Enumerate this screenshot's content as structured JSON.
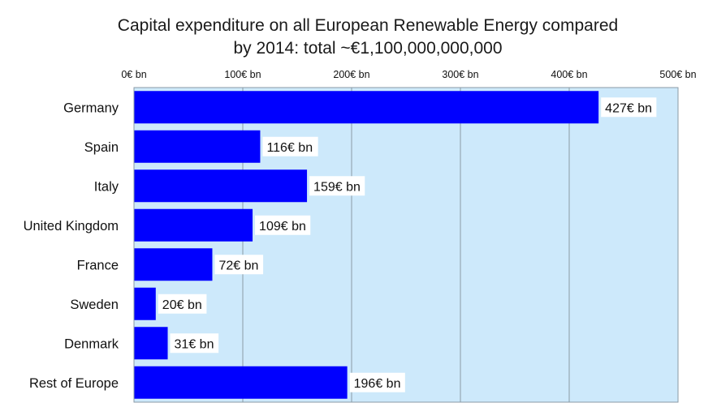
{
  "chart_data": {
    "type": "bar",
    "orientation": "horizontal",
    "title": "Capital expenditure on all European Renewable Energy compared",
    "subtitle": "by 2014:  total ~€1,100,000,000,000",
    "xlabel": "",
    "ylabel": "",
    "categories": [
      "Germany",
      "Spain",
      "Italy",
      "United Kingdom",
      "France",
      "Sweden",
      "Denmark",
      "Rest of Europe"
    ],
    "values": [
      427,
      116,
      159,
      109,
      72,
      20,
      31,
      196
    ],
    "data_labels": [
      "427€ bn",
      "116€ bn",
      "159€ bn",
      "109€ bn",
      "72€ bn",
      "20€ bn",
      "31€ bn",
      "196€ bn"
    ],
    "xlim": [
      0,
      500
    ],
    "ticks": [
      0,
      100,
      200,
      300,
      400,
      500
    ],
    "tick_labels": [
      "0€ bn",
      "100€ bn",
      "200€ bn",
      "300€ bn",
      "400€ bn",
      "500€ bn"
    ],
    "axis_position": "top",
    "grid": true,
    "legend": "none",
    "colors": {
      "bar": "#0000ff",
      "plot_background": "#cde9fb",
      "gridline": "#8a9aa6"
    }
  }
}
